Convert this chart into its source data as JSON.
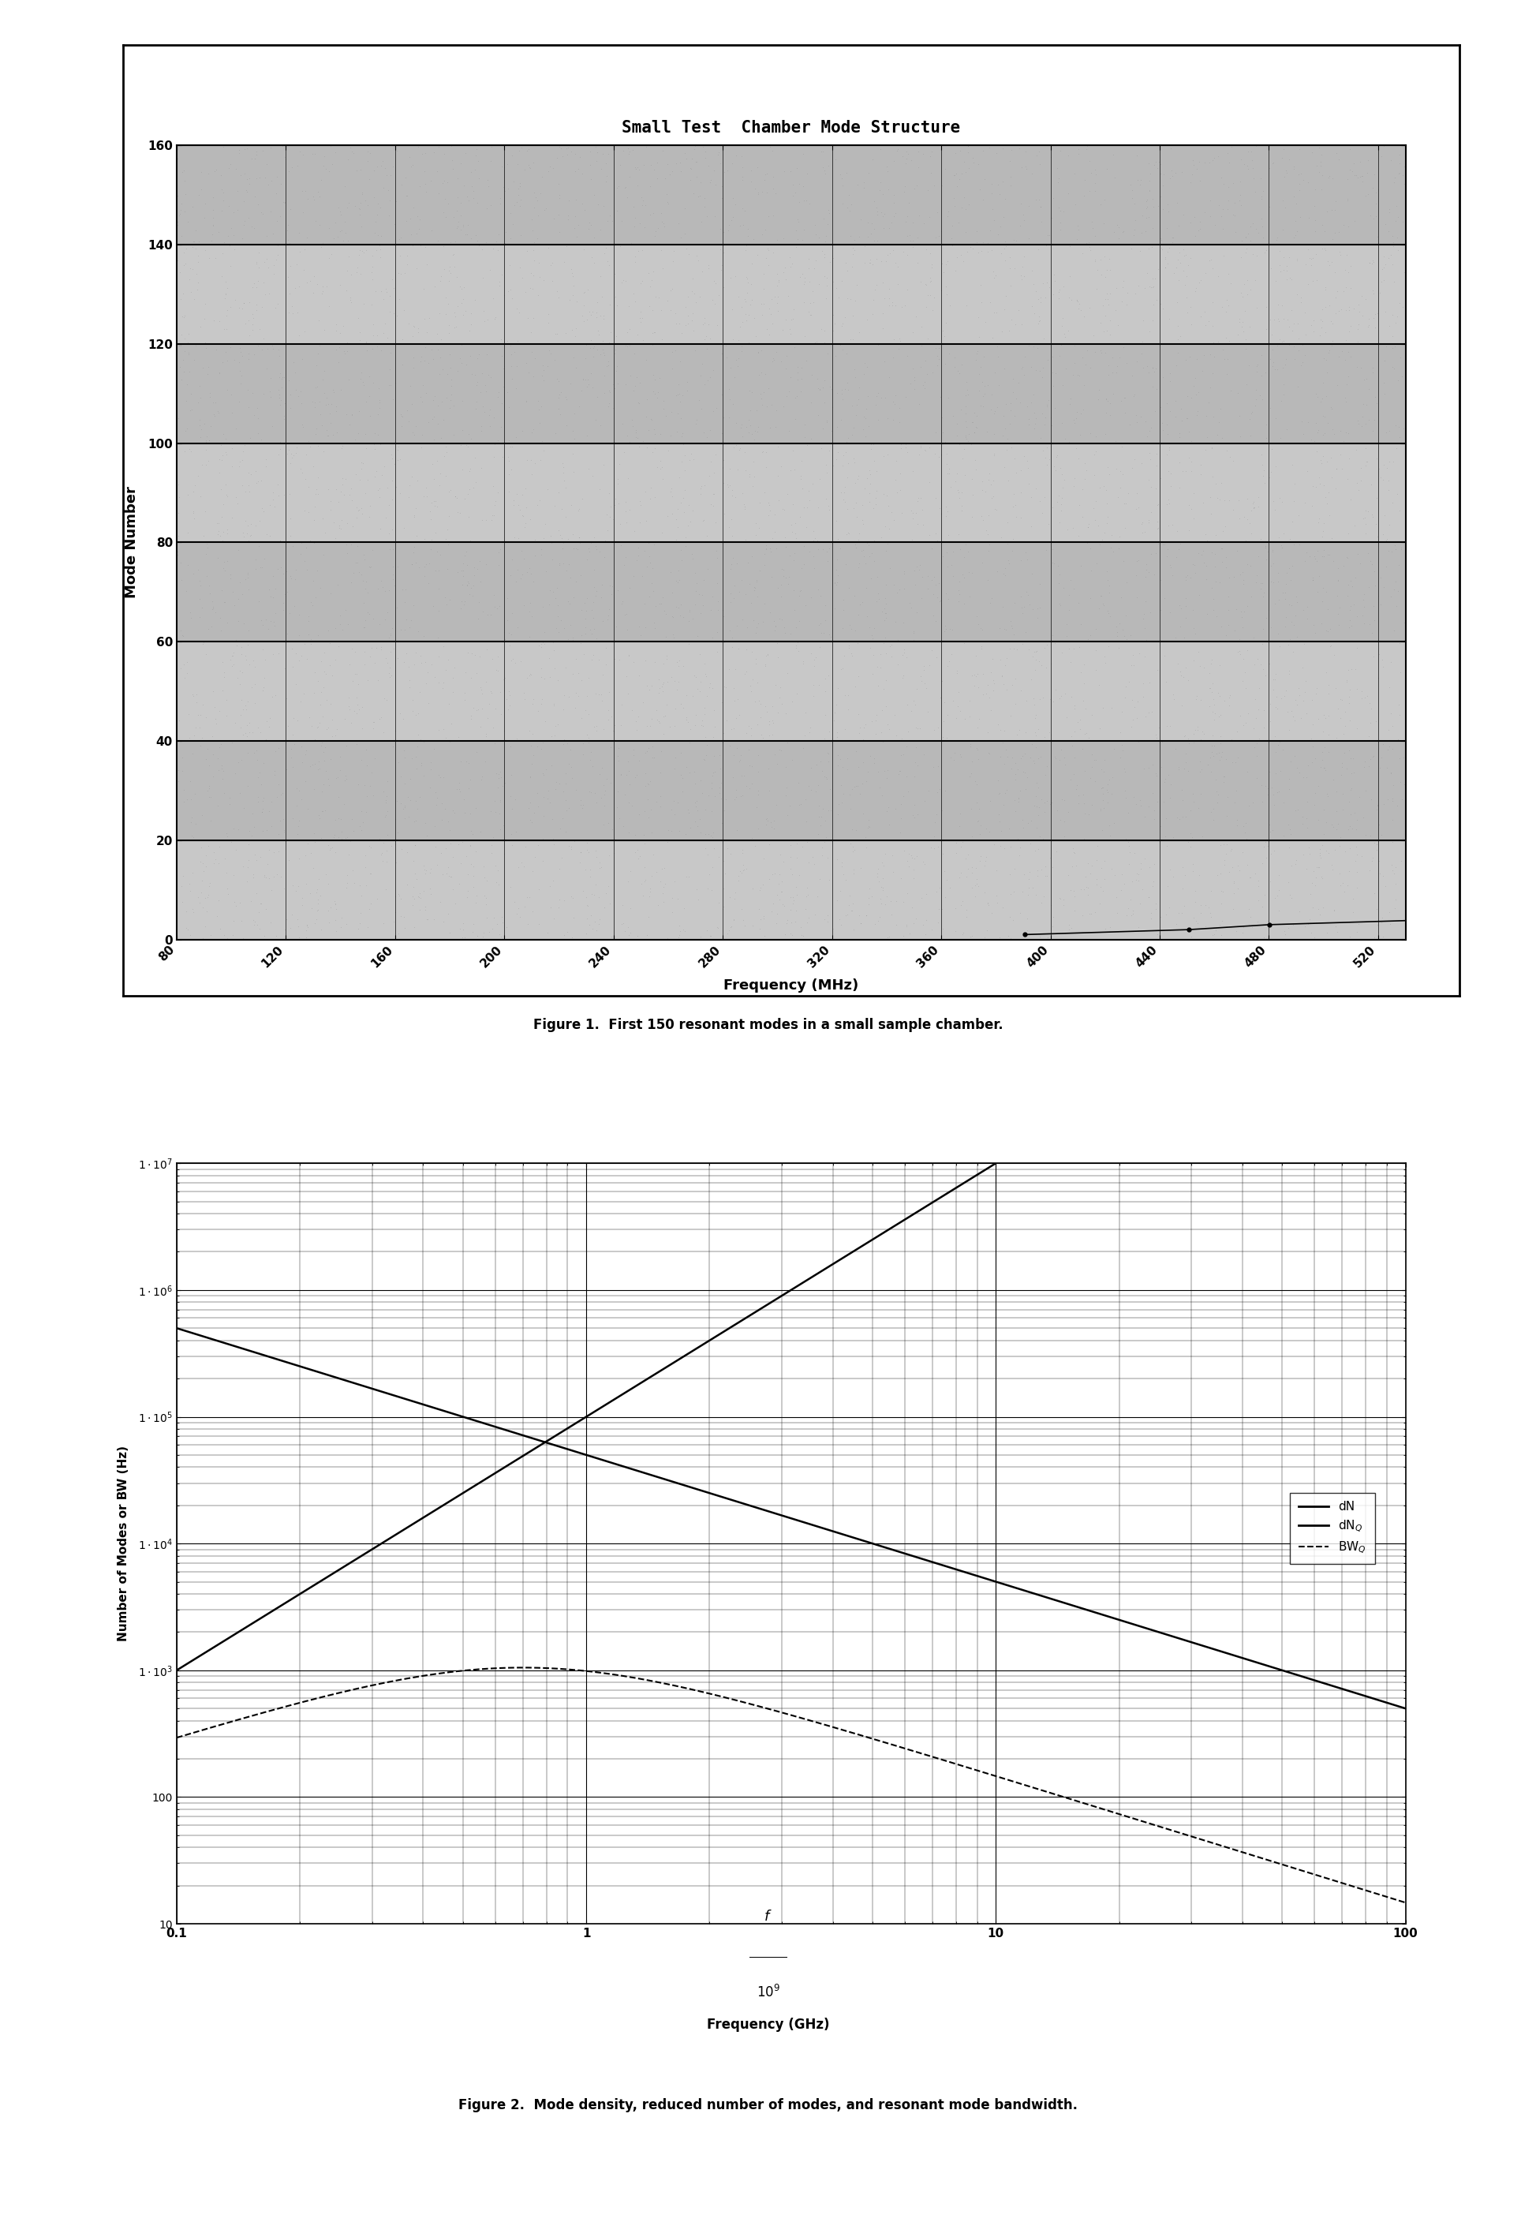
{
  "fig1_title": "Small Test  Chamber Mode Structure",
  "fig1_xlabel": "Frequency (MHz)",
  "fig1_ylabel": "Mode Number",
  "fig1_xlim": [
    80,
    530
  ],
  "fig1_ylim": [
    0,
    160
  ],
  "fig1_yticks": [
    0,
    20,
    40,
    60,
    80,
    100,
    120,
    140,
    160
  ],
  "fig1_xticks": [
    80,
    120,
    160,
    200,
    240,
    280,
    320,
    360,
    400,
    440,
    480,
    520
  ],
  "fig1_caption": "Figure 1.  First 150 resonant modes in a small sample chamber.",
  "fig2_ylabel": "Number of Modes or BW (Hz)",
  "fig2_xlim": [
    0.1,
    100
  ],
  "fig2_ylim": [
    10,
    10000000.0
  ],
  "fig2_caption": "Figure 2.  Mode density, reduced number of modes, and resonant mode bandwidth.",
  "legend_dN": "dN",
  "legend_dNQ": "dN Q",
  "legend_BWQ": "BW Q",
  "band_colors": [
    "#c8c8c8",
    "#b0b0b0"
  ],
  "white": "#ffffff",
  "black": "#000000"
}
